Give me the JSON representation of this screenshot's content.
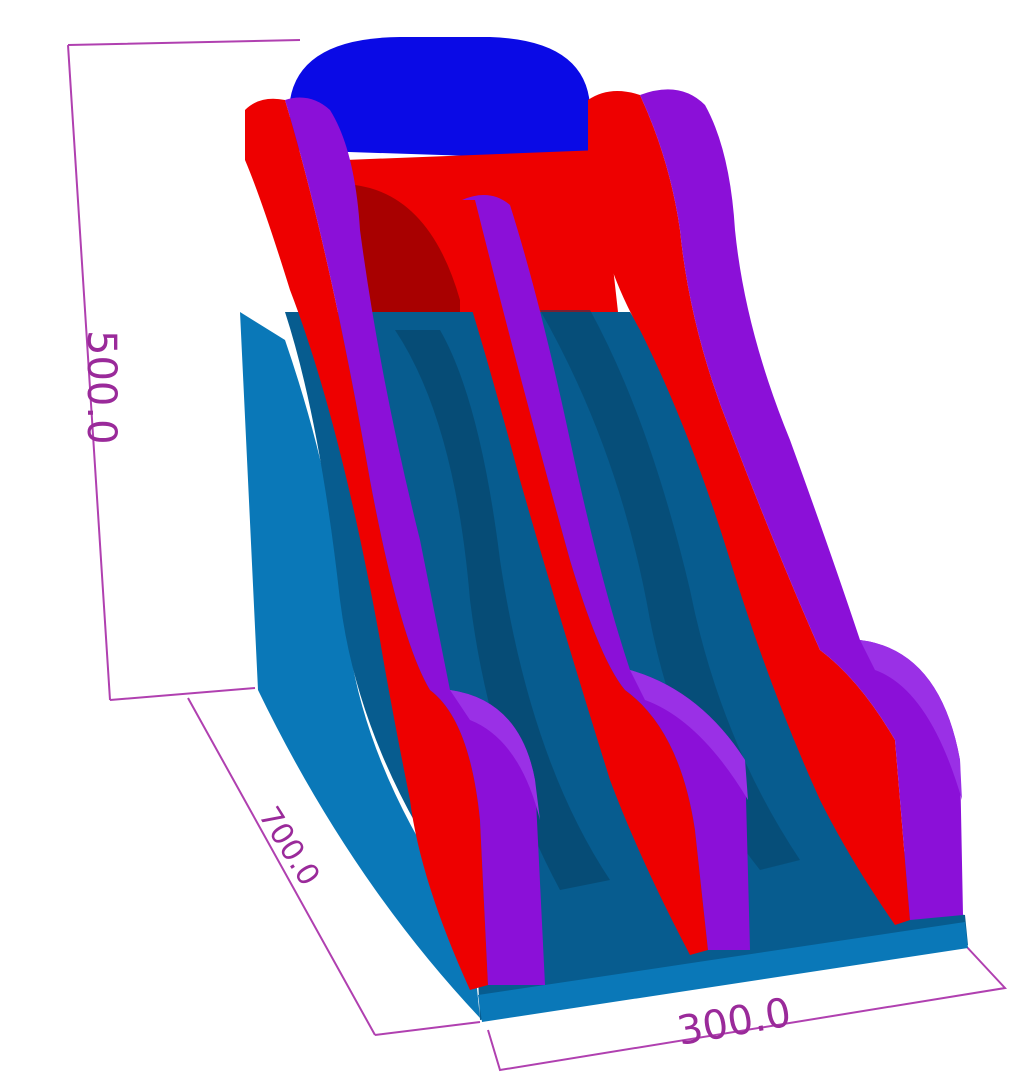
{
  "dimensions": {
    "height": "500.0",
    "depth": "700.0",
    "width": "300.0"
  },
  "colors": {
    "dimension_line": "#b040b0",
    "dimension_text": "#9a2a9a",
    "top_cap": "#0a0ae6",
    "wall_red": "#ee0000",
    "wall_red_dark": "#a80000",
    "rail_purple": "#8b10d8",
    "rail_purple_light": "#9a30e6",
    "base_blue": "#0a78b8",
    "base_blue_dark": "#075c8f",
    "shadow": "#053f63"
  }
}
